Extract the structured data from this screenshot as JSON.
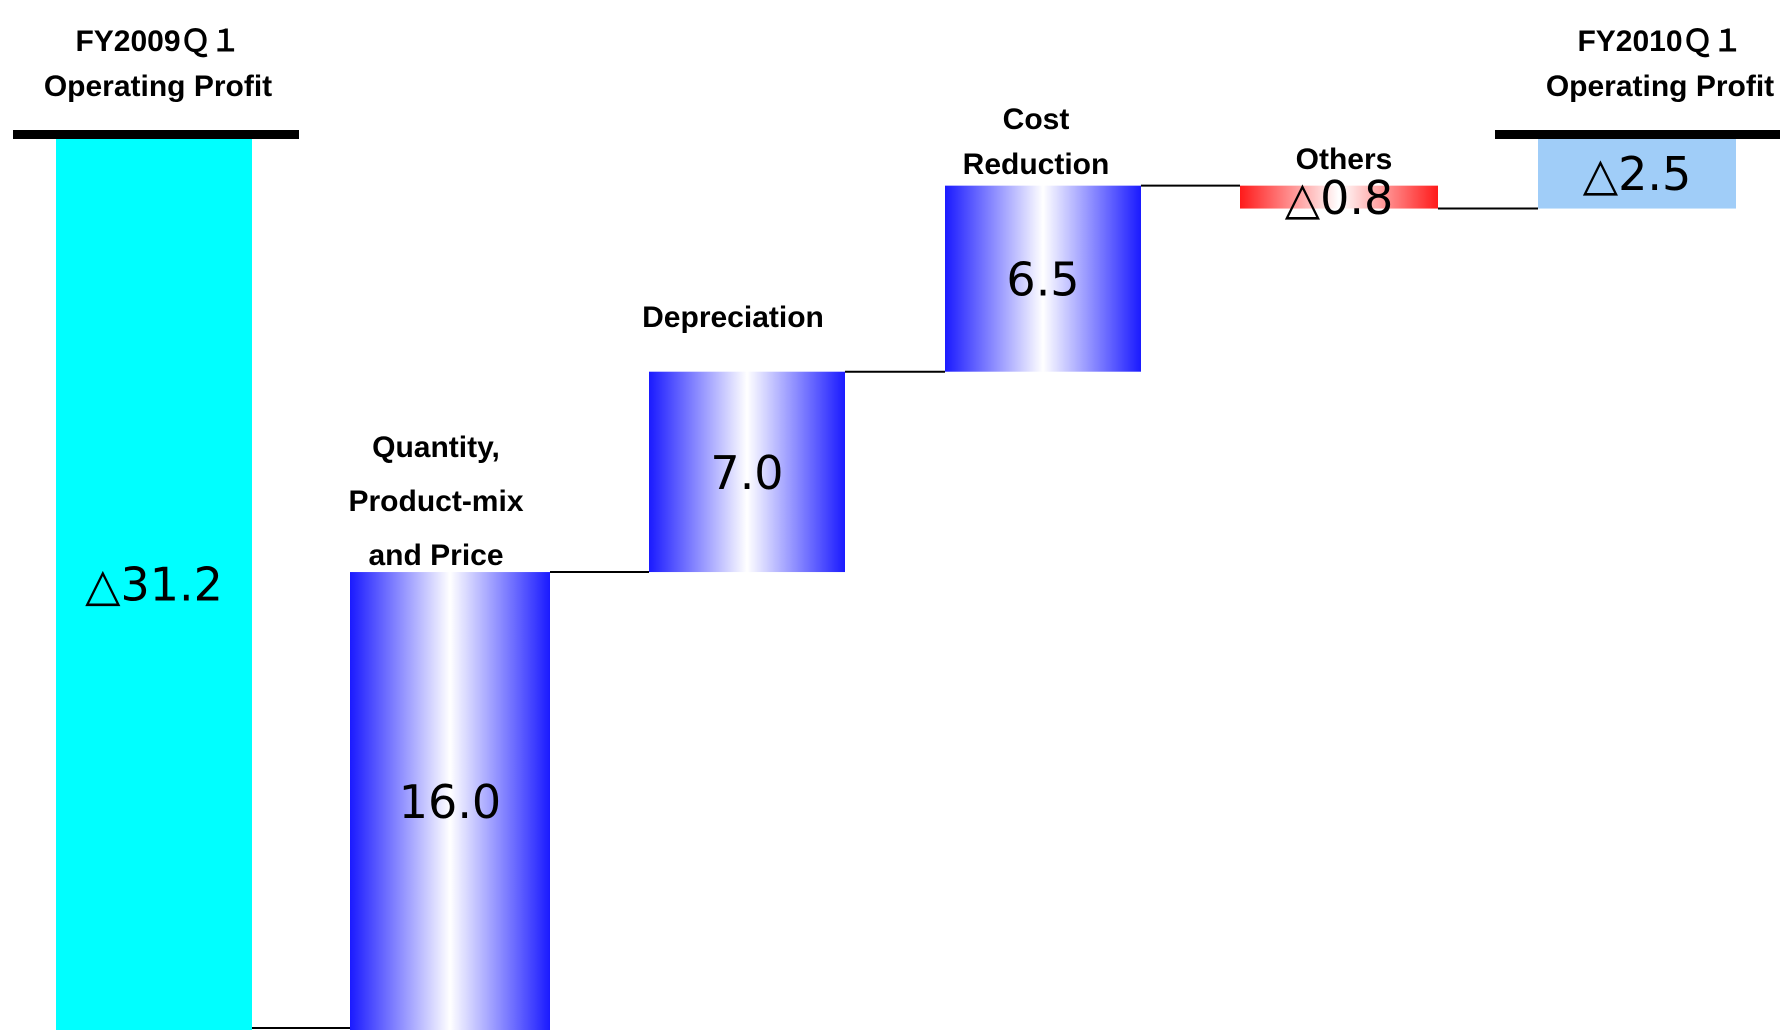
{
  "chart_data": {
    "type": "waterfall",
    "categories": [
      {
        "lines": [
          "FY2009Ｑ１",
          "Operating Profit"
        ]
      },
      {
        "lines": [
          "Quantity,",
          "Product-mix",
          "and Price"
        ]
      },
      {
        "lines": [
          "Depreciation"
        ]
      },
      {
        "lines": [
          "Cost",
          "Reduction"
        ]
      },
      {
        "lines": [
          "Others"
        ]
      },
      {
        "lines": [
          "FY2010Ｑ１",
          "Operating Profit"
        ]
      }
    ],
    "values": [
      -31.2,
      16.0,
      7.0,
      6.5,
      -0.8,
      -2.5
    ],
    "value_labels": [
      "△31.2",
      "16.0",
      "7.0",
      "6.5",
      "△0.8",
      "△2.5"
    ],
    "kinds": [
      "total",
      "increase",
      "increase",
      "increase",
      "decrease",
      "total"
    ],
    "colors": {
      "start_total": "#00ffff",
      "increase": "#1a1aff",
      "decrease": "#ff1a1a",
      "end_total": "#a0cdf8",
      "baseline": "#000000"
    },
    "legend": "none",
    "grid": false
  }
}
